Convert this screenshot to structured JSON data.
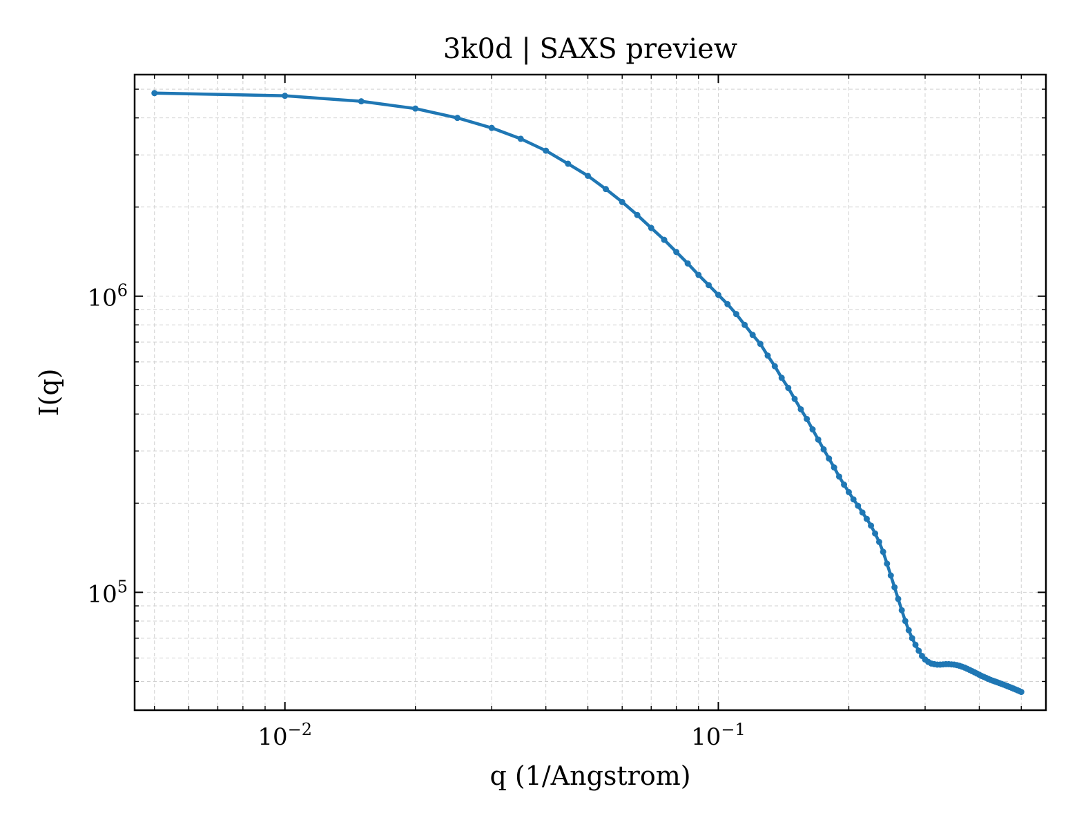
{
  "chart_data": {
    "type": "line",
    "title": "3k0d | SAXS preview",
    "xlabel": "q (1/Angstrom)",
    "ylabel": "I(q)",
    "xscale": "log",
    "yscale": "log",
    "xlim": [
      0.0045,
      0.57
    ],
    "ylim": [
      40000,
      5600000
    ],
    "grid": true,
    "legend": "none",
    "x_ticks": [
      {
        "value": 0.01,
        "base": "10",
        "exp": "−2"
      },
      {
        "value": 0.1,
        "base": "10",
        "exp": "−1"
      }
    ],
    "y_ticks": [
      {
        "value": 100000,
        "base": "10",
        "exp": "5"
      },
      {
        "value": 1000000,
        "base": "10",
        "exp": "6"
      }
    ],
    "series_color": "#1f77b4",
    "series": [
      {
        "x": [
          0.005,
          0.01,
          0.015,
          0.02,
          0.025,
          0.03,
          0.035,
          0.04,
          0.045,
          0.05,
          0.055,
          0.06,
          0.065,
          0.07,
          0.075,
          0.08,
          0.085,
          0.09,
          0.095,
          0.1,
          0.105,
          0.11,
          0.115,
          0.12,
          0.125,
          0.13,
          0.135,
          0.14,
          0.145,
          0.15,
          0.155,
          0.16,
          0.165,
          0.17,
          0.175,
          0.18,
          0.185,
          0.19,
          0.195,
          0.2,
          0.205,
          0.21,
          0.215,
          0.22,
          0.225,
          0.23,
          0.235,
          0.24,
          0.245,
          0.25,
          0.255,
          0.26,
          0.265,
          0.27,
          0.275,
          0.28,
          0.285,
          0.29,
          0.295,
          0.3,
          0.305,
          0.31,
          0.315,
          0.32,
          0.325,
          0.33,
          0.335,
          0.34,
          0.345,
          0.35,
          0.355,
          0.36,
          0.365,
          0.37,
          0.375,
          0.38,
          0.385,
          0.39,
          0.395,
          0.4,
          0.405,
          0.41,
          0.415,
          0.42,
          0.425,
          0.43,
          0.435,
          0.44,
          0.445,
          0.45,
          0.455,
          0.46,
          0.465,
          0.47,
          0.475,
          0.48,
          0.485,
          0.49,
          0.495,
          0.5
        ],
        "y": [
          4850000,
          4750000,
          4550000,
          4300000,
          4000000,
          3700000,
          3400000,
          3100000,
          2800000,
          2550000,
          2300000,
          2080000,
          1880000,
          1700000,
          1550000,
          1410000,
          1290000,
          1180000,
          1090000,
          1010000,
          940000,
          870000,
          800000,
          740000,
          690000,
          630000,
          580000,
          530000,
          490000,
          450000,
          415000,
          385000,
          355000,
          328000,
          304000,
          283000,
          264000,
          246000,
          231000,
          218000,
          206000,
          196000,
          186000,
          177000,
          168000,
          158000,
          148000,
          137000,
          125000,
          114000,
          104000,
          95000,
          87000,
          80000,
          74500,
          70000,
          66500,
          63500,
          61000,
          59300,
          58200,
          57500,
          57200,
          57000,
          57000,
          57100,
          57200,
          57200,
          57100,
          57000,
          56800,
          56500,
          56100,
          55700,
          55200,
          54700,
          54200,
          53700,
          53200,
          52700,
          52200,
          51800,
          51400,
          51000,
          50600,
          50300,
          50000,
          49700,
          49400,
          49100,
          48800,
          48500,
          48200,
          47900,
          47600,
          47300,
          47000,
          46700,
          46400,
          46100
        ]
      }
    ]
  }
}
